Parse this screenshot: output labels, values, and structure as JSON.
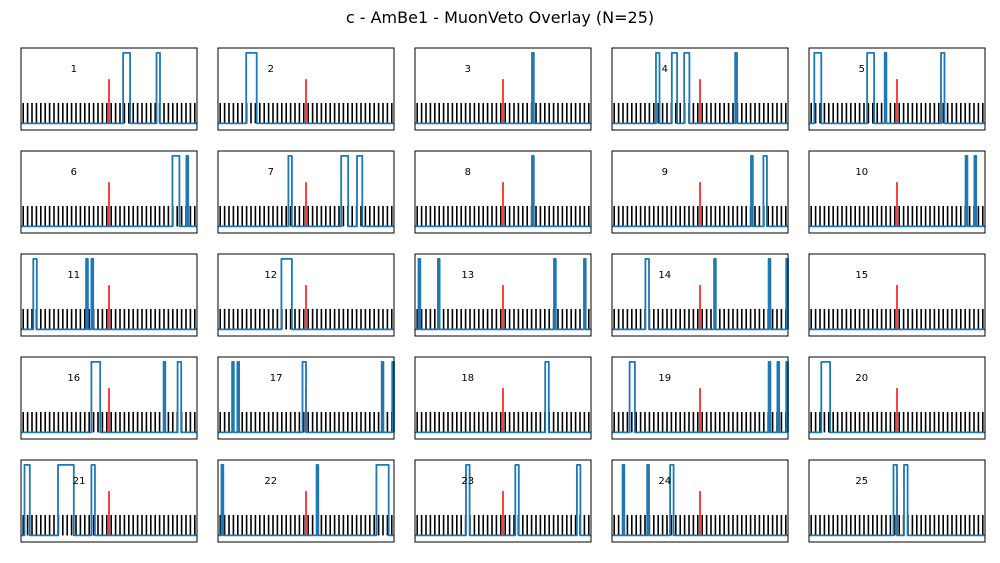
{
  "title": "c - AmBe1 - MuonVeto Overlay (N=25)",
  "colors": {
    "trace": "#1f77b4",
    "marker": "#ff0000",
    "pulses": "#000000",
    "frame": "#000000"
  },
  "chart_data": {
    "type": "line",
    "title": "c - AmBe1 - MuonVeto Overlay (N=25)",
    "grid": false,
    "legend": "none",
    "xlabel": "",
    "ylabel": "",
    "xlim": [
      0,
      1
    ],
    "ylim": [
      0,
      1
    ],
    "pulse_train": {
      "count": 40,
      "height": 0.33,
      "color": "black"
    },
    "marker": {
      "x": 0.5,
      "height": 0.62,
      "color": "red"
    },
    "baseline": 0.08,
    "panels": [
      {
        "label": "1",
        "label_x": 0.3,
        "pulses": [
          [
            0.58,
            0.62
          ],
          [
            0.77,
            0.79
          ]
        ]
      },
      {
        "label": "2",
        "label_x": 0.3,
        "pulses": [
          [
            0.16,
            0.22
          ]
        ]
      },
      {
        "label": "3",
        "label_x": 0.3,
        "pulses": [
          [
            0.665,
            0.675
          ]
        ]
      },
      {
        "label": "4",
        "label_x": 0.3,
        "pulses": [
          [
            0.25,
            0.27
          ],
          [
            0.34,
            0.37
          ],
          [
            0.41,
            0.44
          ],
          [
            0.7,
            0.71
          ]
        ]
      },
      {
        "label": "5",
        "label_x": 0.3,
        "pulses": [
          [
            0.03,
            0.07
          ],
          [
            0.33,
            0.37
          ],
          [
            0.43,
            0.44
          ],
          [
            0.75,
            0.77
          ]
        ]
      },
      {
        "label": "6",
        "label_x": 0.3,
        "pulses": [
          [
            0.86,
            0.9
          ],
          [
            0.94,
            0.95
          ]
        ]
      },
      {
        "label": "7",
        "label_x": 0.3,
        "pulses": [
          [
            0.4,
            0.42
          ],
          [
            0.7,
            0.74
          ],
          [
            0.79,
            0.82
          ]
        ]
      },
      {
        "label": "8",
        "label_x": 0.3,
        "pulses": [
          [
            0.665,
            0.675
          ]
        ]
      },
      {
        "label": "9",
        "label_x": 0.3,
        "pulses": [
          [
            0.79,
            0.8
          ],
          [
            0.86,
            0.88
          ]
        ]
      },
      {
        "label": "10",
        "label_x": 0.3,
        "pulses": [
          [
            0.89,
            0.9
          ],
          [
            0.94,
            0.95
          ]
        ]
      },
      {
        "label": "11",
        "label_x": 0.3,
        "pulses": [
          [
            0.07,
            0.09
          ],
          [
            0.37,
            0.38
          ],
          [
            0.4,
            0.41
          ]
        ]
      },
      {
        "label": "12",
        "label_x": 0.3,
        "pulses": [
          [
            0.36,
            0.42
          ]
        ]
      },
      {
        "label": "13",
        "label_x": 0.3,
        "pulses": [
          [
            0.02,
            0.03
          ],
          [
            0.13,
            0.14
          ],
          [
            0.79,
            0.8
          ],
          [
            0.96,
            0.97
          ]
        ]
      },
      {
        "label": "14",
        "label_x": 0.3,
        "pulses": [
          [
            0.19,
            0.21
          ],
          [
            0.58,
            0.59
          ],
          [
            0.89,
            0.9
          ],
          [
            0.99,
            1.0
          ]
        ]
      },
      {
        "label": "15",
        "label_x": 0.3,
        "pulses": []
      },
      {
        "label": "16",
        "label_x": 0.3,
        "pulses": [
          [
            0.4,
            0.45
          ],
          [
            0.81,
            0.82
          ],
          [
            0.89,
            0.91
          ]
        ]
      },
      {
        "label": "17",
        "label_x": 0.33,
        "pulses": [
          [
            0.08,
            0.09
          ],
          [
            0.11,
            0.12
          ],
          [
            0.48,
            0.5
          ],
          [
            0.93,
            0.94
          ],
          [
            0.99,
            1.0
          ]
        ]
      },
      {
        "label": "18",
        "label_x": 0.3,
        "pulses": [
          [
            0.74,
            0.76
          ]
        ]
      },
      {
        "label": "19",
        "label_x": 0.3,
        "pulses": [
          [
            0.1,
            0.13
          ],
          [
            0.89,
            0.9
          ],
          [
            0.94,
            0.95
          ],
          [
            0.99,
            1.0
          ]
        ]
      },
      {
        "label": "20",
        "label_x": 0.3,
        "pulses": [
          [
            0.07,
            0.12
          ]
        ]
      },
      {
        "label": "21",
        "label_x": 0.33,
        "pulses": [
          [
            0.02,
            0.05
          ],
          [
            0.21,
            0.3
          ],
          [
            0.4,
            0.42
          ]
        ]
      },
      {
        "label": "22",
        "label_x": 0.3,
        "pulses": [
          [
            0.02,
            0.03
          ],
          [
            0.56,
            0.57
          ],
          [
            0.9,
            0.97
          ]
        ]
      },
      {
        "label": "23",
        "label_x": 0.3,
        "pulses": [
          [
            0.29,
            0.31
          ],
          [
            0.57,
            0.59
          ],
          [
            0.92,
            0.94
          ]
        ]
      },
      {
        "label": "24",
        "label_x": 0.3,
        "pulses": [
          [
            0.06,
            0.07
          ],
          [
            0.2,
            0.21
          ],
          [
            0.33,
            0.35
          ]
        ]
      },
      {
        "label": "25",
        "label_x": 0.3,
        "pulses": [
          [
            0.48,
            0.5
          ],
          [
            0.54,
            0.56
          ]
        ]
      }
    ]
  }
}
